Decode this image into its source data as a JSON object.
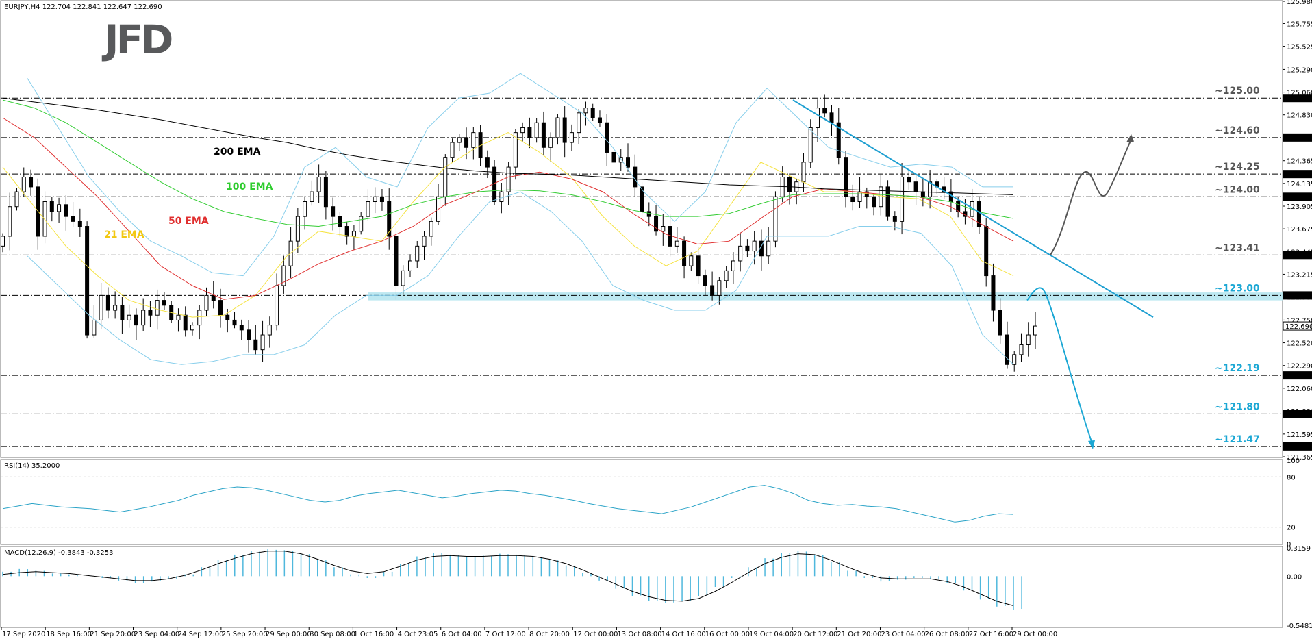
{
  "header": {
    "symbol_line": "EURJPY,H4  122.704 122.841 122.647 122.690"
  },
  "logo": {
    "text": "JFD",
    "color": "#58595b"
  },
  "colors": {
    "bull": "#ffffff",
    "bear": "#000000",
    "ema21": "#f5e342",
    "ema50": "#e03030",
    "ema100": "#33cc33",
    "ema200": "#000000",
    "bollinger": "#87ceeb",
    "trendline": "#1e9fd1",
    "support_zone": "#b2e4ef",
    "arrow_up": "#555555",
    "arrow_down": "#1ba7d4",
    "rsi": "#2aa3c7",
    "macd_hist": "#4fb8dd",
    "macd_signal": "#000000"
  },
  "chart_data": [
    {
      "type": "candlestick",
      "title": "EURJPY,H4",
      "ohlc_last": {
        "open": "122.704",
        "high": "122.841",
        "low": "122.647",
        "close": "122.690"
      },
      "ylim": [
        121.365,
        125.98
      ],
      "y_ticks": [
        "125.980",
        "125.755",
        "125.525",
        "125.290",
        "125.060",
        "124.830",
        "124.600",
        "124.365",
        "124.135",
        "123.905",
        "123.675",
        "123.445",
        "123.215",
        "122.985",
        "122.750",
        "122.520",
        "122.290",
        "122.060",
        "121.830",
        "121.595",
        "121.365"
      ],
      "x_ticks": [
        "17 Sep 2020",
        "18 Sep 16:00",
        "21 Sep 20:00",
        "23 Sep 04:00",
        "24 Sep 12:00",
        "25 Sep 20:00",
        "29 Sep 00:00",
        "30 Sep 08:00",
        "1 Oct 16:00",
        "4 Oct 23:05",
        "6 Oct 04:00",
        "7 Oct 12:00",
        "8 Oct 20:00",
        "12 Oct 00:00",
        "13 Oct 08:00",
        "14 Oct 16:00",
        "16 Oct 00:00",
        "19 Oct 04:00",
        "20 Oct 12:00",
        "21 Oct 20:00",
        "23 Oct 04:00",
        "26 Oct 08:00",
        "27 Oct 16:00",
        "29 Oct 00:00"
      ],
      "levels": [
        {
          "label": "~125.00",
          "value": 125.0,
          "tag": "125.000",
          "color": "#555555"
        },
        {
          "label": "~124.60",
          "value": 124.6,
          "tag": "124.600",
          "color": "#555555"
        },
        {
          "label": "~124.25",
          "value": 124.23,
          "tag": "124.230",
          "color": "#555555"
        },
        {
          "label": "~124.00",
          "value": 124.0,
          "tag": "124.000",
          "color": "#555555"
        },
        {
          "label": "~123.41",
          "value": 123.41,
          "tag": "123.410",
          "color": "#555555"
        },
        {
          "label": "~123.00",
          "value": 123.0,
          "tag": "123.000",
          "color": "#1ba7d4"
        },
        {
          "label": "~122.19",
          "value": 122.19,
          "tag": "122.190",
          "color": "#1ba7d4"
        },
        {
          "label": "~121.80",
          "value": 121.8,
          "tag": "121.800",
          "color": "#1ba7d4"
        },
        {
          "label": "~121.47",
          "value": 121.47,
          "tag": "121.470",
          "color": "#1ba7d4"
        }
      ],
      "current_price_tag": "122.690",
      "ema_labels": [
        {
          "name": "200 EMA",
          "color": "#000000"
        },
        {
          "name": "100 EMA",
          "color": "#2ecc2e"
        },
        {
          "name": "50 EMA",
          "color": "#e03030"
        },
        {
          "name": "21 EMA",
          "color": "#f2c811"
        }
      ],
      "close_series": [
        123.6,
        123.9,
        124.05,
        124.2,
        124.1,
        123.6,
        123.95,
        123.85,
        123.92,
        123.8,
        123.75,
        123.7,
        122.6,
        122.75,
        123.0,
        122.85,
        122.9,
        122.75,
        122.8,
        122.7,
        122.85,
        122.8,
        122.95,
        122.9,
        122.75,
        122.8,
        122.65,
        122.7,
        122.85,
        123.0,
        122.95,
        122.8,
        122.75,
        122.7,
        122.65,
        122.55,
        122.45,
        122.6,
        122.7,
        123.1,
        123.3,
        123.55,
        123.8,
        123.95,
        124.05,
        124.2,
        123.9,
        123.8,
        123.7,
        123.6,
        123.65,
        123.8,
        123.95,
        124.0,
        123.95,
        123.6,
        123.1,
        123.25,
        123.35,
        123.5,
        123.6,
        123.75,
        124.0,
        124.4,
        124.55,
        124.6,
        124.5,
        124.65,
        124.4,
        124.3,
        123.95,
        124.05,
        124.3,
        124.65,
        124.7,
        124.6,
        124.75,
        124.5,
        124.6,
        124.8,
        124.55,
        124.65,
        124.85,
        124.9,
        124.8,
        124.75,
        124.45,
        124.35,
        124.4,
        124.3,
        124.1,
        123.85,
        123.8,
        123.65,
        123.7,
        123.5,
        123.55,
        123.3,
        123.4,
        123.2,
        123.1,
        123.0,
        123.15,
        123.25,
        123.35,
        123.5,
        123.45,
        123.55,
        123.4,
        123.55,
        124.0,
        124.2,
        124.05,
        124.15,
        124.35,
        124.7,
        124.9,
        124.85,
        124.75,
        124.4,
        124.0,
        123.95,
        124.05,
        124.0,
        123.9,
        124.1,
        123.8,
        123.75,
        124.2,
        124.15,
        124.05,
        124.0,
        124.15,
        124.1,
        124.05,
        123.95,
        123.85,
        123.8,
        123.95,
        123.7,
        123.2,
        122.85,
        122.6,
        122.3,
        122.4,
        122.5,
        122.6,
        122.69
      ],
      "ema": {
        "ema200": [
          125.0,
          124.96,
          124.92,
          124.88,
          124.83,
          124.78,
          124.72,
          124.66,
          124.6,
          124.55,
          124.48,
          124.42,
          124.37,
          124.33,
          124.29,
          124.26,
          124.24,
          124.23,
          124.22,
          124.2,
          124.18,
          124.16,
          124.14,
          124.12,
          124.11,
          124.1,
          124.08,
          124.07,
          124.06,
          124.05,
          124.04,
          124.03,
          124.02
        ],
        "ema100": [
          124.98,
          124.9,
          124.75,
          124.55,
          124.35,
          124.15,
          123.98,
          123.85,
          123.78,
          123.72,
          123.7,
          123.75,
          123.8,
          123.92,
          124.0,
          124.05,
          124.07,
          124.06,
          124.02,
          123.95,
          123.86,
          123.8,
          123.8,
          123.83,
          123.93,
          124.02,
          124.03,
          124.03,
          124.02,
          124.0,
          123.95,
          123.84,
          123.78
        ],
        "ema50": [
          124.8,
          124.6,
          124.3,
          124.0,
          123.65,
          123.3,
          123.1,
          122.96,
          123.0,
          123.15,
          123.32,
          123.45,
          123.55,
          123.7,
          123.92,
          124.05,
          124.2,
          124.25,
          124.18,
          124.05,
          123.82,
          123.62,
          123.52,
          123.55,
          123.78,
          124.0,
          124.08,
          124.05,
          124.02,
          124.0,
          123.9,
          123.72,
          123.55
        ],
        "ema21": [
          124.3,
          123.9,
          123.5,
          123.2,
          122.95,
          122.85,
          122.78,
          122.8,
          123.0,
          123.4,
          123.65,
          123.6,
          123.55,
          123.95,
          124.3,
          124.5,
          124.65,
          124.45,
          124.2,
          123.8,
          123.5,
          123.3,
          123.45,
          123.9,
          124.35,
          124.2,
          124.05,
          124.05,
          124.0,
          123.98,
          123.8,
          123.35,
          123.2
        ]
      }
    },
    {
      "type": "line",
      "title": "RSI(14) 35.2000",
      "ylim": [
        0,
        100
      ],
      "y_ticks": [
        "100",
        "80",
        "20",
        "0"
      ],
      "values": [
        42,
        45,
        48,
        46,
        44,
        43,
        42,
        40,
        38,
        41,
        44,
        48,
        52,
        58,
        62,
        66,
        68,
        67,
        64,
        60,
        56,
        52,
        50,
        52,
        57,
        60,
        62,
        64,
        61,
        58,
        55,
        57,
        60,
        62,
        64,
        63,
        60,
        58,
        55,
        52,
        48,
        45,
        42,
        40,
        38,
        36,
        40,
        44,
        50,
        56,
        62,
        68,
        70,
        66,
        60,
        52,
        48,
        46,
        47,
        45,
        44,
        42,
        38,
        34,
        30,
        26,
        28,
        33,
        36,
        35.2
      ]
    },
    {
      "type": "bar",
      "title": "MACD(12,26,9) -0.3843 -0.3253",
      "ylim": [
        -0.5481,
        0.3159
      ],
      "y_ticks": [
        "0.3159",
        "0.00",
        "-0.5481"
      ],
      "histogram": [
        0.05,
        0.08,
        0.06,
        0.03,
        0.02,
        0.0,
        -0.02,
        -0.05,
        -0.08,
        -0.06,
        -0.03,
        0.02,
        0.1,
        0.18,
        0.24,
        0.28,
        0.3,
        0.29,
        0.25,
        0.18,
        0.1,
        0.02,
        -0.02,
        0.05,
        0.14,
        0.22,
        0.26,
        0.24,
        0.22,
        0.23,
        0.25,
        0.24,
        0.22,
        0.18,
        0.12,
        0.04,
        -0.05,
        -0.14,
        -0.22,
        -0.28,
        -0.3,
        -0.28,
        -0.22,
        -0.12,
        -0.02,
        0.1,
        0.2,
        0.26,
        0.28,
        0.24,
        0.16,
        0.06,
        -0.02,
        -0.06,
        -0.04,
        -0.02,
        -0.03,
        -0.08,
        -0.16,
        -0.26,
        -0.34,
        -0.38
      ],
      "signal": [
        0.02,
        0.04,
        0.05,
        0.04,
        0.03,
        0.01,
        -0.01,
        -0.03,
        -0.05,
        -0.05,
        -0.03,
        0.01,
        0.07,
        0.14,
        0.2,
        0.25,
        0.28,
        0.28,
        0.25,
        0.19,
        0.12,
        0.06,
        0.03,
        0.05,
        0.11,
        0.18,
        0.22,
        0.23,
        0.22,
        0.22,
        0.23,
        0.23,
        0.22,
        0.19,
        0.14,
        0.07,
        -0.01,
        -0.09,
        -0.17,
        -0.23,
        -0.27,
        -0.28,
        -0.25,
        -0.17,
        -0.07,
        0.04,
        0.14,
        0.21,
        0.25,
        0.24,
        0.18,
        0.1,
        0.03,
        -0.02,
        -0.03,
        -0.03,
        -0.03,
        -0.06,
        -0.12,
        -0.2,
        -0.28,
        -0.33
      ]
    }
  ]
}
